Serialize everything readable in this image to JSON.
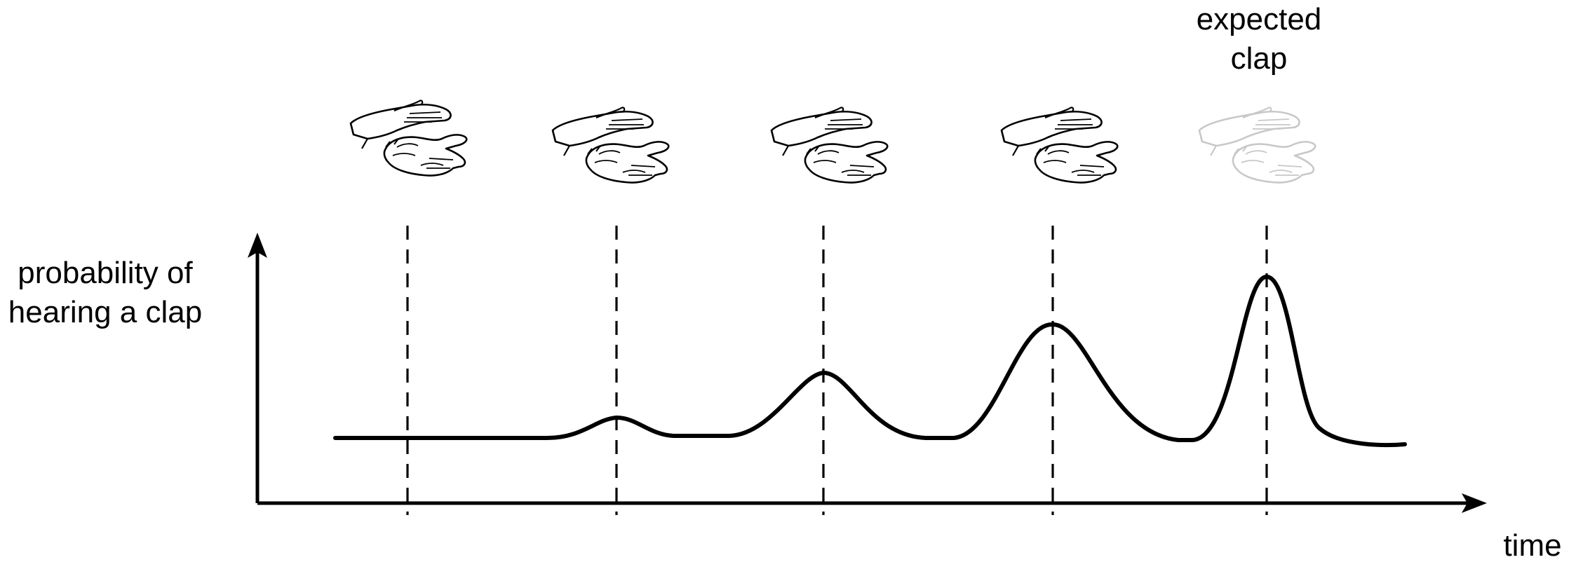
{
  "labels": {
    "y_axis": [
      "probability of",
      "hearing a clap"
    ],
    "x_axis": "time",
    "expected": [
      "expected",
      "clap"
    ]
  },
  "claps": [
    {
      "kind": "actual",
      "name": "clap-1"
    },
    {
      "kind": "actual",
      "name": "clap-2"
    },
    {
      "kind": "actual",
      "name": "clap-3"
    },
    {
      "kind": "actual",
      "name": "clap-4"
    },
    {
      "kind": "expected",
      "name": "expected-clap"
    }
  ],
  "colors": {
    "ink": "#000000",
    "faded": "#c8c8c8"
  }
}
